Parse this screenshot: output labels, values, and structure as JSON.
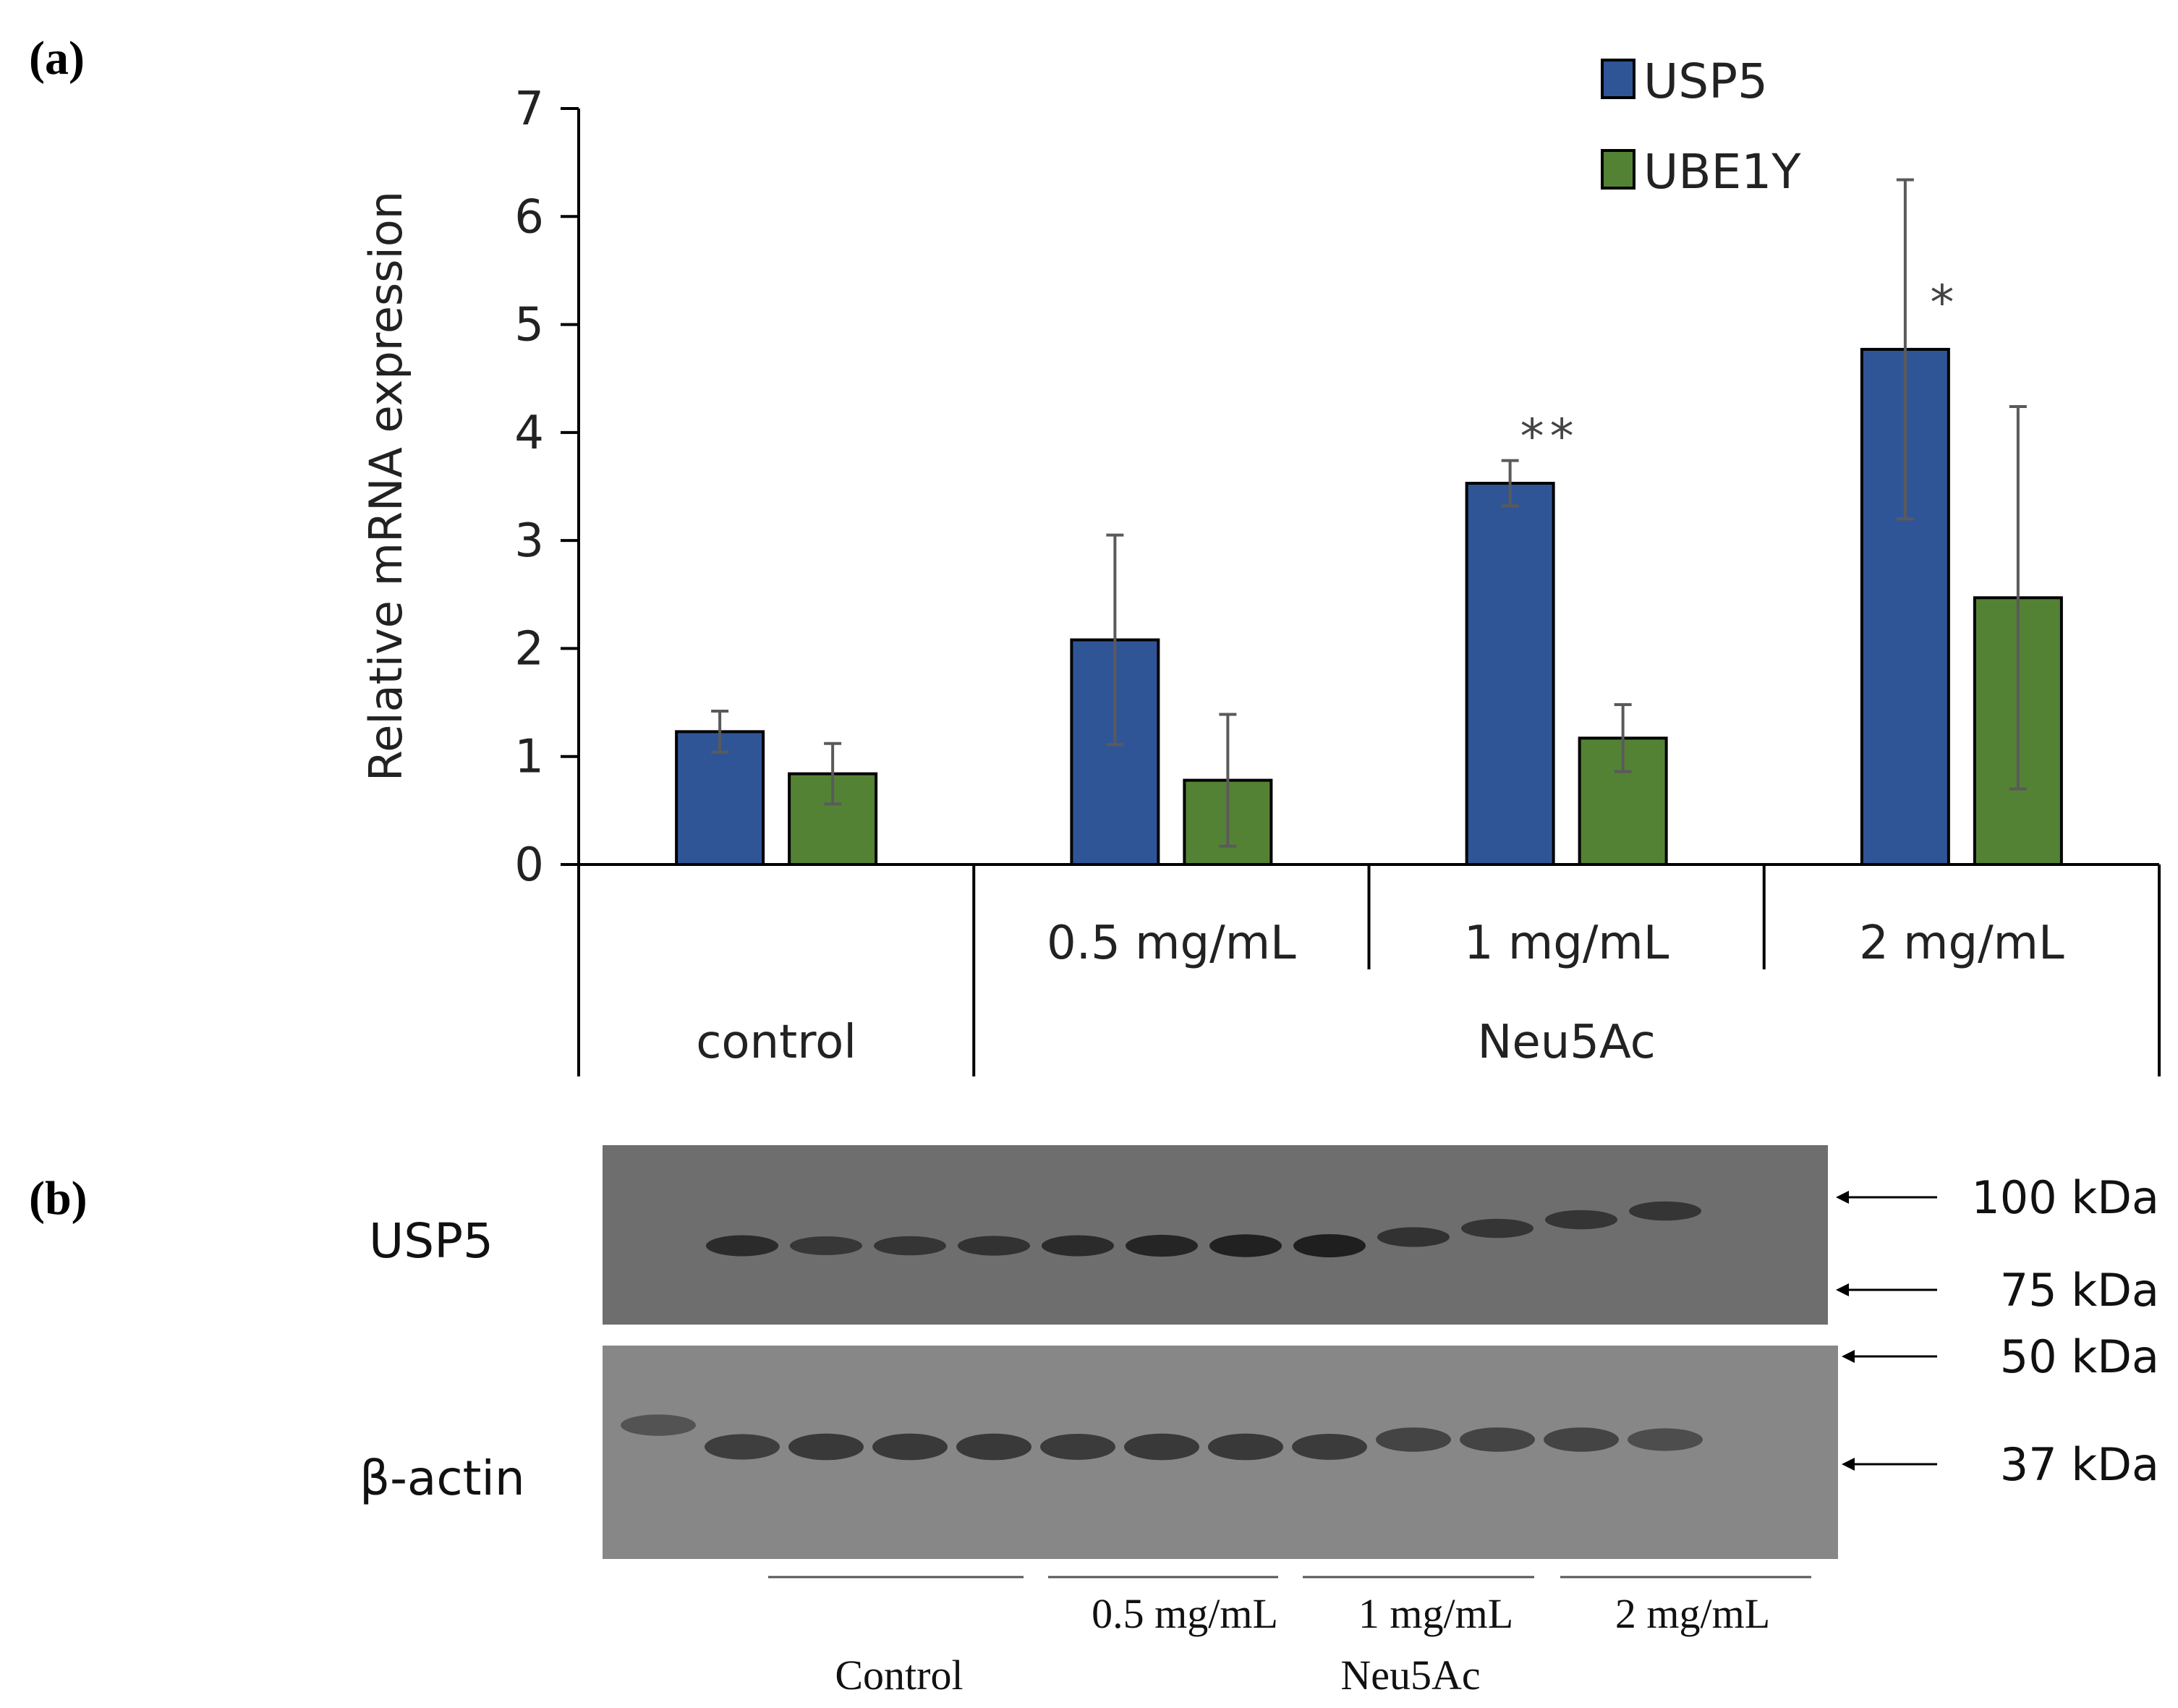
{
  "panel_a_label": "(a)",
  "panel_b_label": "(b)",
  "chart_data": {
    "type": "bar",
    "title": "",
    "ylabel": "Relative mRNA expression",
    "xlabel": "",
    "ylim": [
      0,
      7
    ],
    "yticks": [
      0,
      1,
      2,
      3,
      4,
      5,
      6,
      7
    ],
    "categories": [
      "control",
      "0.5 mg/mL",
      "1 mg/mL",
      "2 mg/mL"
    ],
    "group_labels": [
      {
        "label": "control",
        "categories": [
          "control"
        ]
      },
      {
        "label": "Neu5Ac",
        "categories": [
          "0.5 mg/mL",
          "1 mg/mL",
          "2 mg/mL"
        ]
      }
    ],
    "series": [
      {
        "name": "USP5",
        "color": "#2f5597",
        "values": [
          1.23,
          2.08,
          3.53,
          4.77
        ],
        "errors": [
          0.19,
          0.97,
          0.21,
          1.57
        ]
      },
      {
        "name": "UBE1Y",
        "color": "#548235",
        "values": [
          0.84,
          0.78,
          1.17,
          2.47
        ],
        "errors": [
          0.28,
          0.61,
          0.31,
          1.77
        ]
      }
    ],
    "annotations": [
      {
        "text": "",
        "category": "control",
        "series": "USP5"
      },
      {
        "text": "",
        "category": "0.5 mg/mL",
        "series": "USP5"
      },
      {
        "text": "**",
        "category": "1 mg/mL",
        "series": "USP5"
      },
      {
        "text": "*",
        "category": "2 mg/mL",
        "series": "USP5"
      }
    ],
    "legend": "top-right"
  },
  "blot": {
    "rows": [
      "USP5",
      "β-actin"
    ],
    "markers": [
      "100 kDa",
      "75 kDa",
      "50 kDa",
      "37 kDa"
    ],
    "lane_groups": [
      "",
      "0.5 mg/mL",
      "1 mg/mL",
      "2 mg/mL"
    ],
    "control_label": "Control",
    "treatment_label": "Neu5Ac",
    "usp5_band_intensity": [
      0,
      0.75,
      0.5,
      0.55,
      0.6,
      0.75,
      0.85,
      0.95,
      1.0,
      0.6,
      0.55,
      0.55,
      0.55
    ],
    "actin_band_intensity": [
      0.35,
      0.7,
      0.8,
      0.8,
      0.8,
      0.75,
      0.8,
      0.8,
      0.75,
      0.6,
      0.6,
      0.6,
      0.45
    ]
  }
}
